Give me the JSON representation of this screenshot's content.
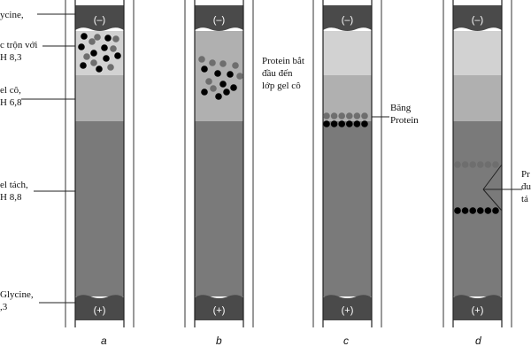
{
  "left_labels": [
    {
      "line1": "ycine,",
      "line2": ""
    },
    {
      "line1": "c trộn với",
      "line2": "H 8,3"
    },
    {
      "line1": "el cô,",
      "line2": "H 6,8"
    },
    {
      "line1": "el tách,",
      "line2": "H 8,8"
    },
    {
      "line1": "Glycine,",
      "line2": ",3"
    }
  ],
  "annotations": {
    "b": {
      "line1": "Protein bắt",
      "line2": "đầu đến",
      "line3": "lớp gel cô"
    },
    "c": {
      "line1": "Băng",
      "line2": "Protein"
    },
    "d": {
      "line1": "Pr",
      "line2": "đu",
      "line3": "tá"
    }
  },
  "electrodes": {
    "top": "(–)",
    "bottom": "(+)"
  },
  "panels": [
    "a",
    "b",
    "c",
    "d"
  ],
  "colors": {
    "buffer": "#4a4a4a",
    "sample_gel": "#d2d2d2",
    "stacking_gel": "#b0b0b0",
    "separating_gel": "#7a7a7a",
    "dark_protein": "#000000",
    "light_protein": "#6e6e6e"
  }
}
